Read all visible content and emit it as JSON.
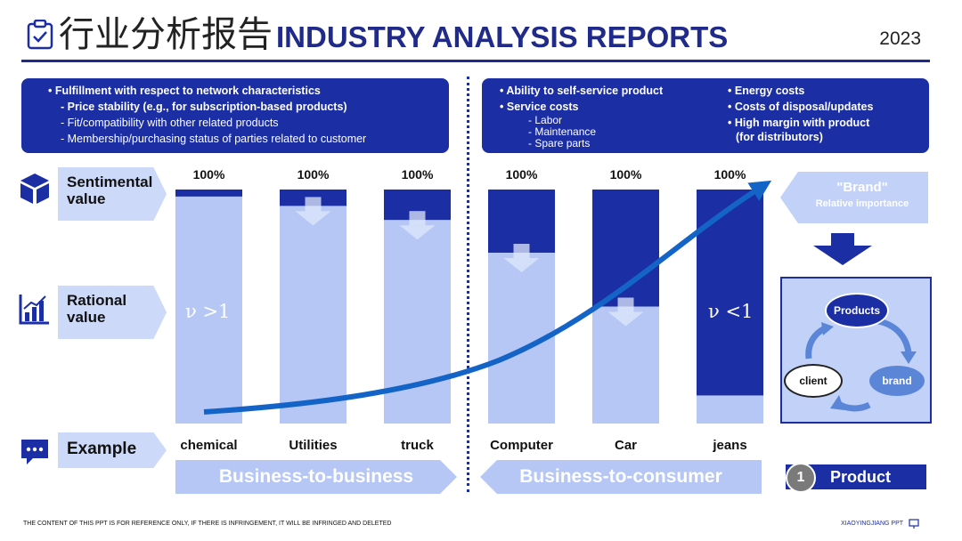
{
  "header": {
    "title_zh": "行业分析报告",
    "title_en": "INDUSTRY ANALYSIS REPORTS",
    "year": "2023"
  },
  "top_left": {
    "main": "Fulfillment with respect to network characteristics",
    "items": [
      "Price stability (e.g., for subscription-based products)",
      "Fit/compatibility with other related products",
      "Membership/purchasing status of parties related to customer"
    ]
  },
  "top_right": {
    "self_service": "Ability to self-service product",
    "service_costs": "Service costs",
    "service_items": [
      "Labor",
      "Maintenance",
      "Spare parts"
    ],
    "energy": "Energy costs",
    "disposal": "Costs of disposal/updates",
    "margin_1": "High margin with product",
    "margin_2": "(for distributors)"
  },
  "labels": {
    "sentimental_1": "Sentimental",
    "sentimental_2": "value",
    "rational_1": "Rational",
    "rational_2": "value",
    "example": "Example",
    "nu_left": "ν >1",
    "nu_right": "ν <1"
  },
  "chart_data": {
    "type": "bar",
    "stacked": true,
    "title": "",
    "categories": [
      "chemical",
      "Utilities",
      "truck",
      "Computer",
      "Car",
      "jeans"
    ],
    "totals": [
      "100%",
      "100%",
      "100%",
      "100%",
      "100%",
      "100%"
    ],
    "series": [
      {
        "name": "Rational value",
        "values": [
          97,
          93,
          87,
          73,
          50,
          12
        ],
        "color": "#b6c7f6"
      },
      {
        "name": "Sentimental value",
        "values": [
          3,
          7,
          13,
          27,
          50,
          88
        ],
        "color": "#1b2ea3"
      }
    ],
    "ylim": [
      0,
      100
    ],
    "trend": "Brand relative importance rises from chemical to jeans"
  },
  "banners": {
    "b2b": "Business-to-business",
    "b2c": "Business-to-consumer"
  },
  "brand": {
    "title": "\"Brand\"",
    "subtitle": "Relative importance"
  },
  "cycle": {
    "products": "Products",
    "client": "client",
    "brand": "brand"
  },
  "product_tag": {
    "number": "1",
    "label": "Product"
  },
  "footer": {
    "left": "THE CONTENT OF THIS PPT IS FOR REFERENCE ONLY, IF THERE IS INFRINGEMENT, IT WILL BE INFRINGED AND DELETED",
    "right": "XIAOYINGJIANG PPT"
  },
  "colors": {
    "dark_blue": "#1b2ea3",
    "light_blue": "#b6c7f6",
    "pale_blue": "#cdd9f9",
    "curve": "#1464c8"
  }
}
